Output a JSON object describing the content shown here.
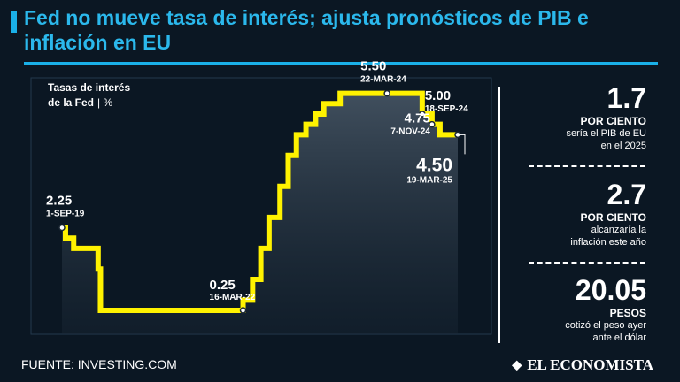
{
  "header": {
    "title": "Fed no mueve tasa de interés; ajusta pronósticos de PIB e inflación en EU"
  },
  "chart_data": {
    "type": "line",
    "title_line1": "Tasas de interés",
    "title_line2": "de la Fed",
    "unit": "| %",
    "line_color": "#fff200",
    "steps": [
      {
        "date": "2019-09-01",
        "value": 2.25
      },
      {
        "date": "2019-09-19",
        "value": 2.0
      },
      {
        "date": "2019-10-31",
        "value": 1.75
      },
      {
        "date": "2020-03-04",
        "value": 1.25
      },
      {
        "date": "2020-03-16",
        "value": 0.25
      },
      {
        "date": "2022-03-16",
        "value": 0.5
      },
      {
        "date": "2022-05-04",
        "value": 1.0
      },
      {
        "date": "2022-06-15",
        "value": 1.75
      },
      {
        "date": "2022-07-27",
        "value": 2.5
      },
      {
        "date": "2022-09-21",
        "value": 3.25
      },
      {
        "date": "2022-11-02",
        "value": 4.0
      },
      {
        "date": "2022-12-14",
        "value": 4.5
      },
      {
        "date": "2023-02-01",
        "value": 4.75
      },
      {
        "date": "2023-03-22",
        "value": 5.0
      },
      {
        "date": "2023-05-03",
        "value": 5.25
      },
      {
        "date": "2023-07-26",
        "value": 5.5
      },
      {
        "date": "2024-09-18",
        "value": 5.0
      },
      {
        "date": "2024-11-07",
        "value": 4.75
      },
      {
        "date": "2024-12-18",
        "value": 4.5
      },
      {
        "date": "2025-03-19",
        "value": 4.5
      }
    ],
    "annotations": [
      {
        "value": "2.25",
        "date_label": "1-SEP-19",
        "x": "2019-09-01",
        "y": 2.25
      },
      {
        "value": "0.25",
        "date_label": "16-MAR-22",
        "x": "2022-03-16",
        "y": 0.25
      },
      {
        "value": "5.50",
        "date_label": "22-MAR-24",
        "x": "2024-03-22",
        "y": 5.5
      },
      {
        "value": "5.00",
        "date_label": "18-SEP-24",
        "x": "2024-09-18",
        "y": 5.0
      },
      {
        "value": "4.75",
        "date_label": "7-NOV-24",
        "x": "2024-11-07",
        "y": 4.75
      },
      {
        "value": "4.50",
        "date_label": "19-MAR-25",
        "x": "2025-03-19",
        "y": 4.5
      }
    ]
  },
  "stats": [
    {
      "number": "1.7",
      "unit": "POR CIENTO",
      "desc1": "sería el PIB de EU",
      "desc2": "en el 2025"
    },
    {
      "number": "2.7",
      "unit": "POR CIENTO",
      "desc1": "alcanzaría la",
      "desc2": "inflación este año"
    },
    {
      "number": "20.05",
      "unit": "PESOS",
      "desc1": "cotizó el peso ayer",
      "desc2": "ante el dólar"
    }
  ],
  "footer": {
    "source": "FUENTE: INVESTING.COM",
    "logo_mark": "◆",
    "logo": "EL ECONOMISTA"
  }
}
